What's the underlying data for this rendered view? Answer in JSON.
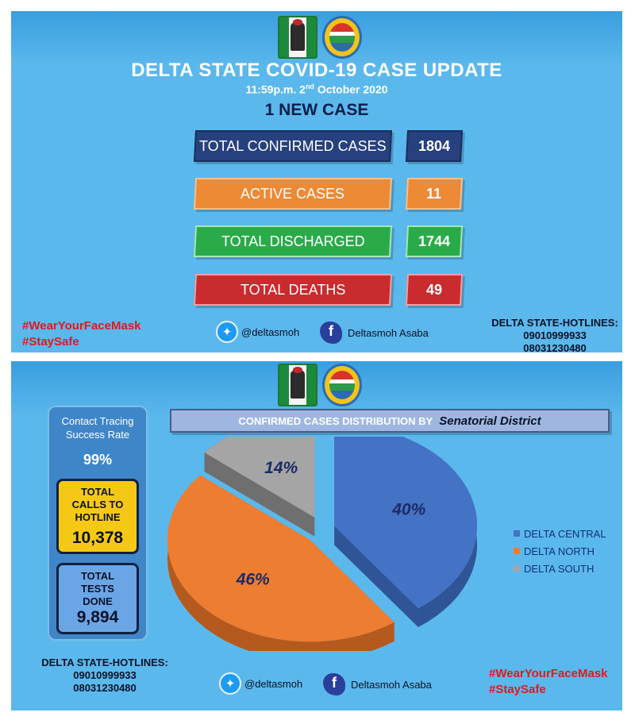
{
  "top": {
    "title": "DELTA STATE COVID-19 CASE UPDATE",
    "time": "11:59p.m. 2",
    "date_sup": "nd",
    "date_rest": " October 2020",
    "new_case": "1 NEW CASE",
    "stats": [
      {
        "label": "TOTAL CONFIRMED CASES",
        "value": "1804",
        "color": "#27407e"
      },
      {
        "label": "ACTIVE CASES",
        "value": "11",
        "color": "#ec8a35"
      },
      {
        "label": "TOTAL DISCHARGED",
        "value": "1744",
        "color": "#2aab4a"
      },
      {
        "label": "TOTAL DEATHS",
        "value": "49",
        "color": "#c92b2e"
      }
    ],
    "hashtags": [
      "#WearYourFaceMask",
      "#StaySafe"
    ],
    "twitter": "@deltasmoh",
    "facebook": "Deltasmoh Asaba",
    "hotlines_title": "DELTA STATE-HOTLINES:",
    "hotlines": [
      "09010999933",
      "08031230480"
    ]
  },
  "bottom": {
    "tracing_title": "Contact Tracing Success Rate",
    "tracing_rate": "99%",
    "calls_label": "TOTAL CALLS TO HOTLINE",
    "calls_value": "10,378",
    "tests_label": "TOTAL TESTS DONE",
    "tests_value": "9,894",
    "banner_prefix": "CONFIRMED CASES DISTRIBUTION BY",
    "banner_em": "Senatorial District",
    "hotlines_title": "DELTA STATE-HOTLINES:",
    "hotlines": [
      "09010999933",
      "08031230480"
    ],
    "twitter": "@deltasmoh",
    "facebook": "Deltasmoh Asaba",
    "hashtags": [
      "#WearYourFaceMask",
      "#StaySafe"
    ]
  },
  "icons": {
    "twitter": "twitter-bird-icon",
    "facebook": "facebook-f-icon",
    "crest_left": "nigeria-coat-of-arms-icon",
    "crest_right": "delta-state-seal-icon"
  },
  "chart_data": {
    "type": "pie",
    "title": "CONFIRMED CASES DISTRIBUTION BY Senatorial District",
    "categories": [
      "DELTA CENTRAL",
      "DELTA NORTH",
      "DELTA SOUTH"
    ],
    "values": [
      40,
      46,
      14
    ],
    "labels": [
      "40%",
      "46%",
      "14%"
    ],
    "colors": [
      "#4472c4",
      "#ed7d31",
      "#a5a5a5"
    ],
    "dark_colors": [
      "#2f5597",
      "#b45a1f",
      "#6f6f6f"
    ],
    "legend_position": "right",
    "exploded": true,
    "three_d": true
  }
}
